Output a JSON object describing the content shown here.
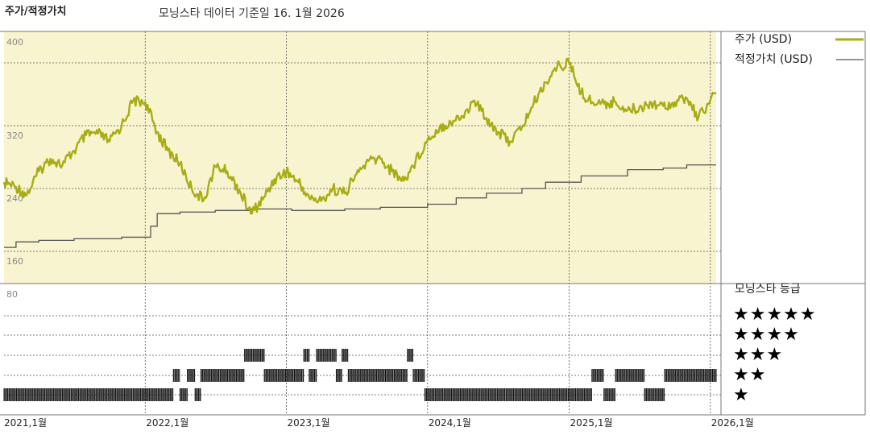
{
  "header": {
    "title": "주가/적정가치",
    "subtitle": "모닝스타 데이터 기준일 16. 1월 2026"
  },
  "legend": {
    "price": "주가 (USD)",
    "fair_value": "적정가치 (USD)"
  },
  "rating_panel": {
    "title": "모닝스타 등급",
    "stars": [
      "★★★★★",
      "★★★★",
      "★★★",
      "★★",
      "★"
    ]
  },
  "colors": {
    "price_line": "#a8ad14",
    "fair_value_line": "#555555",
    "plot_bg": "#f8f4cf",
    "grid": "#555555",
    "bars": "#111111"
  },
  "chart_data": [
    {
      "type": "line",
      "ylim": [
        120,
        410
      ],
      "y_ticks": [
        400,
        320,
        240,
        160
      ],
      "x_ticks": [
        "2021,1월",
        "2022,1월",
        "2023,1월",
        "2024,1월",
        "2025,1월",
        "2026,1월"
      ],
      "xlim": [
        "2021-01-01",
        "2026-01-16"
      ],
      "series": [
        {
          "name": "주가 (USD)",
          "points": [
            [
              "2021-01-01",
              248
            ],
            [
              "2021-02-01",
              242
            ],
            [
              "2021-03-01",
              232
            ],
            [
              "2021-04-01",
              262
            ],
            [
              "2021-05-01",
              278
            ],
            [
              "2021-06-01",
              270
            ],
            [
              "2021-07-01",
              288
            ],
            [
              "2021-08-01",
              308
            ],
            [
              "2021-09-01",
              310
            ],
            [
              "2021-10-01",
              300
            ],
            [
              "2021-11-01",
              320
            ],
            [
              "2021-12-01",
              352
            ],
            [
              "2022-01-01",
              350
            ],
            [
              "2022-02-01",
              312
            ],
            [
              "2022-03-01",
              288
            ],
            [
              "2022-04-01",
              272
            ],
            [
              "2022-05-01",
              240
            ],
            [
              "2022-06-01",
              225
            ],
            [
              "2022-07-01",
              268
            ],
            [
              "2022-08-01",
              262
            ],
            [
              "2022-09-01",
              238
            ],
            [
              "2022-10-01",
              208
            ],
            [
              "2022-11-01",
              226
            ],
            [
              "2022-12-01",
              252
            ],
            [
              "2023-01-01",
              262
            ],
            [
              "2023-02-01",
              248
            ],
            [
              "2023-03-01",
              228
            ],
            [
              "2023-04-01",
              224
            ],
            [
              "2023-05-01",
              240
            ],
            [
              "2023-06-01",
              234
            ],
            [
              "2023-07-01",
              258
            ],
            [
              "2023-08-01",
              275
            ],
            [
              "2023-09-01",
              278
            ],
            [
              "2023-10-01",
              262
            ],
            [
              "2023-11-01",
              250
            ],
            [
              "2023-12-01",
              275
            ],
            [
              "2024-01-01",
              302
            ],
            [
              "2024-02-01",
              318
            ],
            [
              "2024-03-01",
              324
            ],
            [
              "2024-04-01",
              332
            ],
            [
              "2024-05-01",
              352
            ],
            [
              "2024-06-01",
              330
            ],
            [
              "2024-07-01",
              312
            ],
            [
              "2024-08-01",
              300
            ],
            [
              "2024-09-01",
              318
            ],
            [
              "2024-10-01",
              348
            ],
            [
              "2024-11-01",
              375
            ],
            [
              "2024-12-01",
              395
            ],
            [
              "2025-01-01",
              400
            ],
            [
              "2025-02-01",
              362
            ],
            [
              "2025-03-01",
              350
            ],
            [
              "2025-04-01",
              348
            ],
            [
              "2025-05-01",
              350
            ],
            [
              "2025-06-01",
              340
            ],
            [
              "2025-07-01",
              342
            ],
            [
              "2025-08-01",
              350
            ],
            [
              "2025-09-01",
              345
            ],
            [
              "2025-10-01",
              350
            ],
            [
              "2025-11-01",
              355
            ],
            [
              "2025-12-01",
              330
            ],
            [
              "2026-01-16",
              362
            ]
          ]
        },
        {
          "name": "적정가치 (USD)",
          "step_points": [
            [
              "2021-01-01",
              165
            ],
            [
              "2021-02-01",
              172
            ],
            [
              "2021-04-01",
              174
            ],
            [
              "2021-07-01",
              176
            ],
            [
              "2021-11-01",
              178
            ],
            [
              "2022-01-15",
              192
            ],
            [
              "2022-02-01",
              208
            ],
            [
              "2022-04-01",
              210
            ],
            [
              "2022-07-01",
              212
            ],
            [
              "2022-10-01",
              214
            ],
            [
              "2023-01-15",
              212
            ],
            [
              "2023-06-01",
              214
            ],
            [
              "2023-09-01",
              216
            ],
            [
              "2024-01-01",
              220
            ],
            [
              "2024-03-15",
              228
            ],
            [
              "2024-06-01",
              234
            ],
            [
              "2024-09-01",
              240
            ],
            [
              "2024-11-01",
              248
            ],
            [
              "2025-02-01",
              256
            ],
            [
              "2025-06-01",
              264
            ],
            [
              "2025-09-01",
              266
            ],
            [
              "2025-11-01",
              270
            ],
            [
              "2026-01-16",
              270
            ]
          ]
        }
      ]
    },
    {
      "type": "bar",
      "y_ticks": [
        80
      ],
      "levels": [
        1,
        2,
        3,
        4,
        5
      ],
      "rating_segments": [
        [
          "2021-01-01",
          "2022-03-15",
          1
        ],
        [
          "2022-03-15",
          "2022-04-01",
          2
        ],
        [
          "2022-04-01",
          "2022-04-20",
          1
        ],
        [
          "2022-04-20",
          "2022-05-10",
          2
        ],
        [
          "2022-05-10",
          "2022-05-25",
          1
        ],
        [
          "2022-05-25",
          "2022-09-15",
          2
        ],
        [
          "2022-09-15",
          "2022-11-05",
          3
        ],
        [
          "2022-11-05",
          "2023-02-15",
          2
        ],
        [
          "2023-02-15",
          "2023-03-01",
          3
        ],
        [
          "2023-03-01",
          "2023-03-20",
          2
        ],
        [
          "2023-03-20",
          "2023-05-10",
          3
        ],
        [
          "2023-05-10",
          "2023-05-25",
          2
        ],
        [
          "2023-05-25",
          "2023-06-10",
          3
        ],
        [
          "2023-06-10",
          "2023-11-10",
          2
        ],
        [
          "2023-11-10",
          "2023-11-25",
          3
        ],
        [
          "2023-11-25",
          "2023-12-25",
          2
        ],
        [
          "2023-12-25",
          "2025-03-01",
          1
        ],
        [
          "2025-03-01",
          "2025-04-01",
          2
        ],
        [
          "2025-04-01",
          "2025-05-01",
          1
        ],
        [
          "2025-05-01",
          "2025-07-15",
          2
        ],
        [
          "2025-07-15",
          "2025-09-05",
          1
        ],
        [
          "2025-09-05",
          "2026-01-16",
          2
        ]
      ]
    }
  ]
}
